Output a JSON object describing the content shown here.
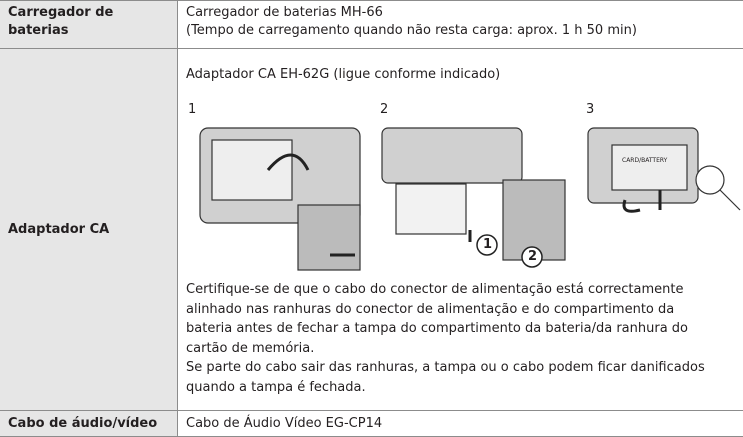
{
  "table": {
    "rows": [
      {
        "label": [
          "Carregador de",
          "baterias"
        ],
        "lines": [
          "Carregador de baterias MH-66",
          "(Tempo de carregamento quando não resta carga: aprox. 1 h 50 min)"
        ]
      },
      {
        "label": [
          "Adaptador CA"
        ],
        "intro": "Adaptador CA EH-62G (ligue conforme indicado)",
        "steps": [
          "1",
          "2",
          "3"
        ],
        "callouts": [
          "1",
          "2"
        ],
        "tag": "CARD/BATTERY",
        "lines": [
          "Certifique-se de que o cabo do conector de alimentação está correctamente",
          "alinhado nas ranhuras do conector de alimentação e do compartimento da",
          "bateria antes de fechar a tampa do compartimento da bateria/da ranhura do",
          "cartão de memória.",
          "Se parte do cabo sair das ranhuras, a tampa ou o cabo podem ficar danificados",
          "quando a tampa é fechada."
        ]
      },
      {
        "label": [
          "Cabo de áudio/vídeo"
        ],
        "lines": [
          "Cabo de Áudio Vídeo EG-CP14"
        ]
      }
    ]
  }
}
